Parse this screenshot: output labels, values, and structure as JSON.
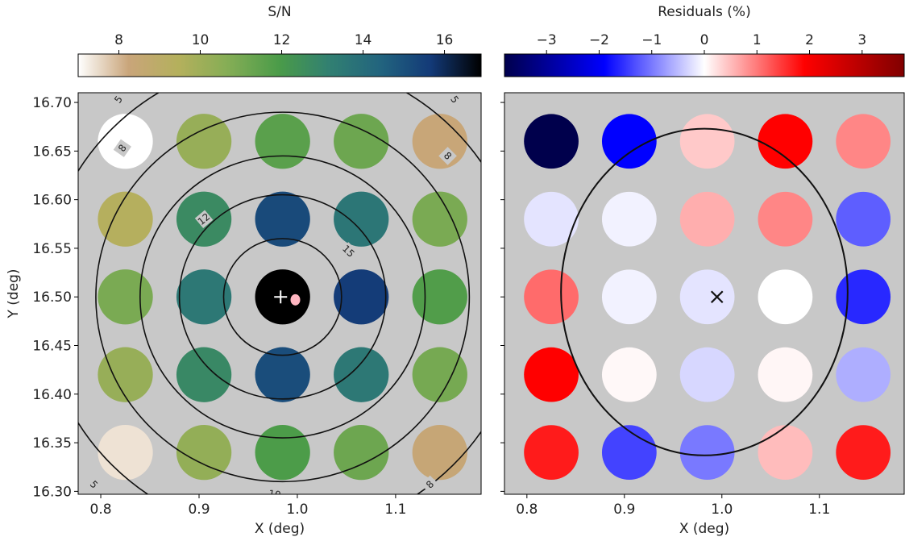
{
  "chart_data": [
    {
      "type": "scatter",
      "subtype": "spatial circle map with contours",
      "xlabel": "X (deg)",
      "ylabel": "Y (deg)",
      "xlim": [
        0.777,
        1.187
      ],
      "ylim": [
        16.297,
        16.71
      ],
      "xticks": [
        0.8,
        0.9,
        1.0,
        1.1
      ],
      "yticks": [
        16.3,
        16.35,
        16.4,
        16.45,
        16.5,
        16.55,
        16.6,
        16.65,
        16.7
      ],
      "background": "#c8c8c8",
      "colorbar": {
        "label": "S/N",
        "range": [
          7.0,
          16.9
        ],
        "ticks": [
          8,
          10,
          12,
          14,
          16
        ],
        "colormap": "gist_earth_r",
        "stops": [
          "#ffffff",
          "#c9a57a",
          "#b4b05c",
          "#83ad55",
          "#4a9b49",
          "#317f72",
          "#22647e",
          "#133a78",
          "#000000"
        ]
      },
      "contour_center": [
        0.985,
        16.5
      ],
      "contours": [
        {
          "level": 15,
          "radius_deg": 0.06
        },
        {
          "level": 12,
          "radius_deg": 0.105
        },
        {
          "level": 10,
          "radius_deg": 0.145
        },
        {
          "level": 8,
          "radius_deg": 0.19
        },
        {
          "level": 5,
          "radius_deg": 0.245
        }
      ],
      "contour_labels": [
        {
          "text": "15",
          "x": 1.052,
          "y": 16.547,
          "rotation": 45
        },
        {
          "text": "12",
          "x": 0.905,
          "y": 16.58,
          "rotation": -40
        },
        {
          "text": "10",
          "x": 0.977,
          "y": 16.297,
          "rotation": 8
        },
        {
          "text": "8",
          "x": 0.822,
          "y": 16.653,
          "rotation": -55
        },
        {
          "text": "8",
          "x": 1.153,
          "y": 16.645,
          "rotation": 45
        },
        {
          "text": "8",
          "x": 1.135,
          "y": 16.307,
          "rotation": -45
        },
        {
          "text": "5",
          "x": 0.818,
          "y": 16.703,
          "rotation": -55
        },
        {
          "text": "5",
          "x": 1.16,
          "y": 16.703,
          "rotation": 55
        },
        {
          "text": "5",
          "x": 0.793,
          "y": 16.307,
          "rotation": 45
        }
      ],
      "points": [
        {
          "x": 0.825,
          "y": 16.66,
          "sn": 7.0
        },
        {
          "x": 0.905,
          "y": 16.66,
          "sn": 10.2
        },
        {
          "x": 0.985,
          "y": 16.66,
          "sn": 11.6
        },
        {
          "x": 1.065,
          "y": 16.66,
          "sn": 11.2
        },
        {
          "x": 1.145,
          "y": 16.66,
          "sn": 8.3
        },
        {
          "x": 0.825,
          "y": 16.58,
          "sn": 9.4
        },
        {
          "x": 0.905,
          "y": 16.58,
          "sn": 12.7
        },
        {
          "x": 0.985,
          "y": 16.58,
          "sn": 15.2
        },
        {
          "x": 1.065,
          "y": 16.58,
          "sn": 13.6
        },
        {
          "x": 1.145,
          "y": 16.58,
          "sn": 10.9
        },
        {
          "x": 0.825,
          "y": 16.5,
          "sn": 10.9
        },
        {
          "x": 0.905,
          "y": 16.5,
          "sn": 13.5
        },
        {
          "x": 0.985,
          "y": 16.5,
          "sn": 16.9
        },
        {
          "x": 1.065,
          "y": 16.5,
          "sn": 15.6
        },
        {
          "x": 1.145,
          "y": 16.5,
          "sn": 11.8
        },
        {
          "x": 0.825,
          "y": 16.42,
          "sn": 10.2
        },
        {
          "x": 0.905,
          "y": 16.42,
          "sn": 12.8
        },
        {
          "x": 0.985,
          "y": 16.42,
          "sn": 15.1
        },
        {
          "x": 1.065,
          "y": 16.42,
          "sn": 13.5
        },
        {
          "x": 1.145,
          "y": 16.42,
          "sn": 11.0
        },
        {
          "x": 0.825,
          "y": 16.34,
          "sn": 7.4
        },
        {
          "x": 0.905,
          "y": 16.34,
          "sn": 10.3
        },
        {
          "x": 0.985,
          "y": 16.34,
          "sn": 11.9
        },
        {
          "x": 1.065,
          "y": 16.34,
          "sn": 11.2
        },
        {
          "x": 1.145,
          "y": 16.34,
          "sn": 8.4
        }
      ],
      "markers": [
        {
          "type": "plus",
          "x": 0.983,
          "y": 16.5,
          "color": "#ffffff"
        },
        {
          "type": "dot",
          "x": 0.998,
          "y": 16.497,
          "color": "#ffb6c1"
        }
      ]
    },
    {
      "type": "scatter",
      "subtype": "spatial circle map",
      "xlabel": "X (deg)",
      "xlim": [
        0.777,
        1.187
      ],
      "ylim": [
        16.297,
        16.71
      ],
      "xticks": [
        0.8,
        0.9,
        1.0,
        1.1
      ],
      "background": "#c8c8c8",
      "colorbar": {
        "label": "Residuals (%)",
        "range": [
          -3.8,
          3.8
        ],
        "ticks": [
          -3,
          -2,
          -1,
          0,
          1,
          2,
          3
        ],
        "colormap": "seismic",
        "stops": [
          "#00004c",
          "#0000ff",
          "#ffffff",
          "#ff0000",
          "#800000"
        ]
      },
      "ellipse": {
        "cx": 0.982,
        "cy": 16.505,
        "rx": 0.147,
        "ry": 0.168
      },
      "points": [
        {
          "x": 0.825,
          "y": 16.66,
          "residual": -3.8
        },
        {
          "x": 0.905,
          "y": 16.66,
          "residual": -1.9
        },
        {
          "x": 0.985,
          "y": 16.66,
          "residual": 0.4
        },
        {
          "x": 1.065,
          "y": 16.66,
          "residual": 1.9
        },
        {
          "x": 1.145,
          "y": 16.66,
          "residual": 0.9
        },
        {
          "x": 0.825,
          "y": 16.58,
          "residual": -0.2
        },
        {
          "x": 0.905,
          "y": 16.58,
          "residual": -0.1
        },
        {
          "x": 0.985,
          "y": 16.58,
          "residual": 0.6
        },
        {
          "x": 1.065,
          "y": 16.58,
          "residual": 0.9
        },
        {
          "x": 1.145,
          "y": 16.58,
          "residual": -1.2
        },
        {
          "x": 0.825,
          "y": 16.5,
          "residual": 1.1
        },
        {
          "x": 0.905,
          "y": 16.5,
          "residual": -0.1
        },
        {
          "x": 0.985,
          "y": 16.5,
          "residual": -0.2
        },
        {
          "x": 1.065,
          "y": 16.5,
          "residual": 0.0
        },
        {
          "x": 1.145,
          "y": 16.5,
          "residual": -1.6
        },
        {
          "x": 0.825,
          "y": 16.42,
          "residual": 1.9
        },
        {
          "x": 0.905,
          "y": 16.42,
          "residual": 0.05
        },
        {
          "x": 0.985,
          "y": 16.42,
          "residual": -0.3
        },
        {
          "x": 1.065,
          "y": 16.42,
          "residual": 0.07
        },
        {
          "x": 1.145,
          "y": 16.42,
          "residual": -0.6
        },
        {
          "x": 0.825,
          "y": 16.34,
          "residual": 1.7
        },
        {
          "x": 0.905,
          "y": 16.34,
          "residual": -1.4
        },
        {
          "x": 0.985,
          "y": 16.34,
          "residual": -1.0
        },
        {
          "x": 1.065,
          "y": 16.34,
          "residual": 0.5
        },
        {
          "x": 1.145,
          "y": 16.34,
          "residual": 1.7
        }
      ],
      "markers": [
        {
          "type": "x",
          "x": 0.995,
          "y": 16.5,
          "color": "#111111"
        }
      ]
    }
  ]
}
